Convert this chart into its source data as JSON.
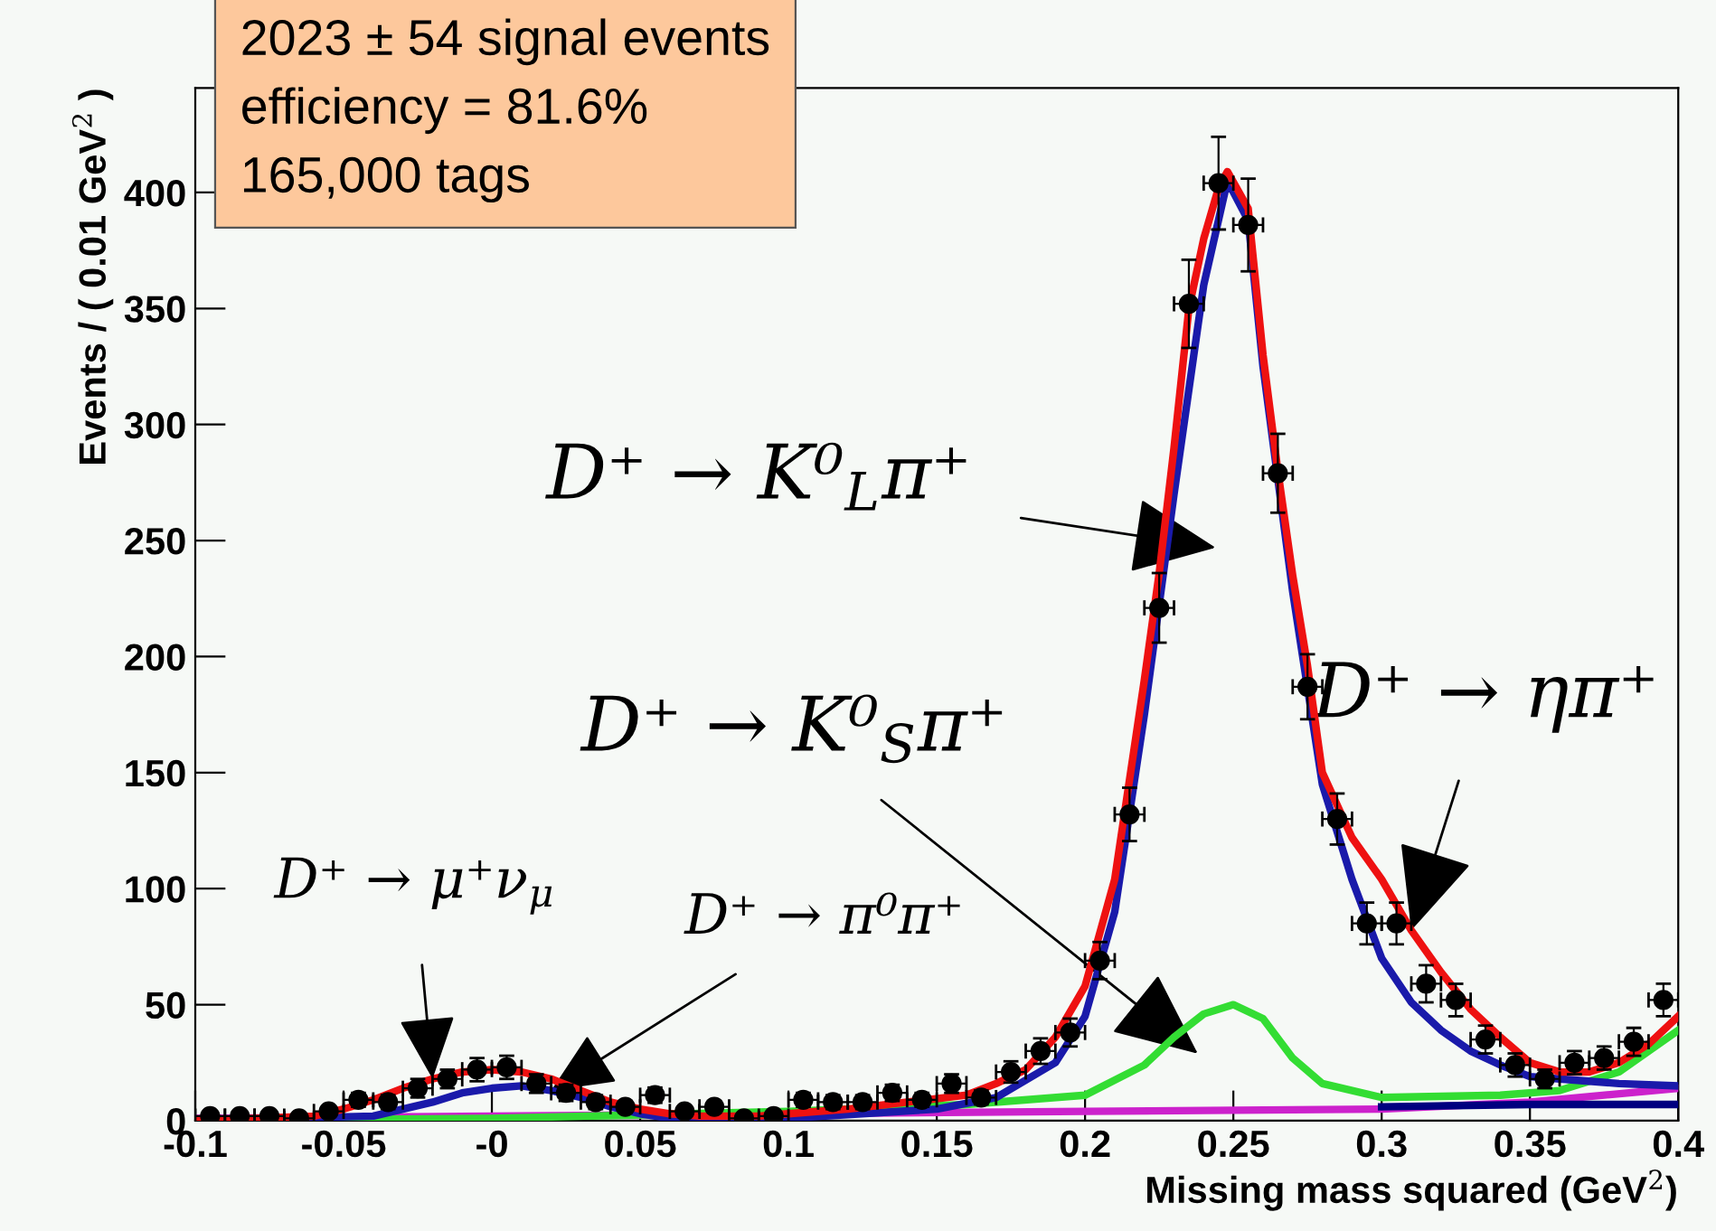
{
  "chart_data": {
    "type": "scatter",
    "xlabel": "Missing mass squared (GeV$^{2}$)",
    "ylabel": "Events / ( 0.01 GeV$^{2}$ )",
    "xlim": [
      -0.1,
      0.4
    ],
    "ylim": [
      0,
      445
    ],
    "xticks": [
      -0.1,
      -0.05,
      {
        "value": 0,
        "label": "-0"
      },
      0.05,
      0.1,
      0.15,
      0.2,
      0.25,
      0.3,
      0.35,
      0.4
    ],
    "yticks": [
      0,
      50,
      100,
      150,
      200,
      250,
      300,
      350,
      400
    ],
    "grid": false,
    "legend": false,
    "annotations": [
      "2023 ± 54 signal events",
      "efficiency = 81.6%",
      "165,000 tags",
      "D⁺ → K⁰$_{L}$π⁺",
      "D⁺ → K⁰$_{S}$π⁺",
      {
        "text": "D⁺ → ηπ⁺",
        "x": 0.31,
        "y": 82
      },
      {
        "text": "D⁺ → μ⁺ν$_{μ}$",
        "x": -0.02,
        "y": 18
      },
      {
        "text": "D⁺ → π⁰π⁺",
        "x": 0.02,
        "y": 13
      }
    ],
    "series": [
      {
        "color": "#000000",
        "marker": "circle",
        "x": [
          -0.095,
          -0.085,
          -0.075,
          -0.065,
          -0.055,
          -0.045,
          -0.035,
          -0.025,
          -0.015,
          -0.005,
          0.005,
          0.015,
          0.025,
          0.035,
          0.045,
          0.055,
          0.065,
          0.075,
          0.085,
          0.095,
          0.105,
          0.115,
          0.125,
          0.135,
          0.145,
          0.155,
          0.165,
          0.175,
          0.185,
          0.195,
          0.205,
          0.215,
          0.225,
          0.235,
          0.245,
          0.255,
          0.265,
          0.275,
          0.285,
          0.295,
          0.305,
          0.315,
          0.325,
          0.335,
          0.345,
          0.355,
          0.365,
          0.375,
          0.385,
          0.395
        ],
        "values": [
          2,
          2,
          2,
          1,
          4,
          9,
          8,
          14,
          18,
          22,
          23,
          16,
          12,
          8,
          6,
          11,
          4,
          6,
          1,
          2,
          9,
          8,
          8,
          12,
          9,
          16,
          10,
          21,
          30,
          38,
          69,
          132,
          221,
          352,
          404,
          386,
          279,
          187,
          130,
          85,
          85,
          59,
          52,
          35,
          24,
          18,
          25,
          27,
          34,
          52
        ],
        "errors": [
          1.4,
          1.4,
          1.4,
          1,
          2,
          3,
          3,
          4,
          4,
          5,
          5,
          4,
          3.5,
          3,
          2.5,
          3.3,
          2,
          2.5,
          1,
          1.4,
          3,
          3,
          3,
          3.5,
          3,
          4,
          3,
          4.6,
          5.5,
          6,
          8,
          11.5,
          15,
          19,
          20,
          20,
          17,
          14,
          11,
          9,
          9,
          8,
          7,
          6,
          5,
          4,
          5,
          5,
          6,
          7
        ],
        "xerrors": [
          0.005,
          0.005,
          0.005,
          0.005,
          0.005,
          0.005,
          0.005,
          0.005,
          0.005,
          0.005,
          0.005,
          0.005,
          0.005,
          0.005,
          0.005,
          0.005,
          0.005,
          0.005,
          0.005,
          0.005,
          0.005,
          0.005,
          0.005,
          0.005,
          0.005,
          0.005,
          0.005,
          0.005,
          0.005,
          0.005,
          0.005,
          0.005,
          0.005,
          0.005,
          0.005,
          0.005,
          0.005,
          0.005,
          0.005,
          0.005,
          0.005,
          0.005,
          0.005,
          0.005,
          0.005,
          0.005,
          0.005,
          0.005,
          0.005,
          0.005
        ]
      },
      {
        "type": "line",
        "color": "#cc22cc",
        "x": [
          -0.1,
          0.0,
          0.1,
          0.2,
          0.3,
          0.35,
          0.4
        ],
        "values": [
          1,
          2,
          3,
          4,
          5,
          8,
          14
        ]
      },
      {
        "type": "line",
        "color": "#000080",
        "x": [
          0.3,
          0.35,
          0.4
        ],
        "values": [
          6,
          7,
          7
        ]
      },
      {
        "type": "line",
        "color": "#33dd33",
        "x": [
          -0.1,
          0.0,
          0.1,
          0.16,
          0.2,
          0.22,
          0.23,
          0.24,
          0.25,
          0.26,
          0.27,
          0.28,
          0.3,
          0.34,
          0.36,
          0.38,
          0.4
        ],
        "values": [
          0,
          1,
          4,
          7,
          11,
          24,
          36,
          46,
          50,
          44,
          27,
          16,
          10,
          11,
          13,
          21,
          39
        ]
      },
      {
        "type": "line",
        "color": "#1a1aaa",
        "x": [
          -0.1,
          -0.04,
          -0.03,
          -0.02,
          -0.01,
          0.0,
          0.01,
          0.02,
          0.03,
          0.04,
          0.05,
          0.06,
          0.1,
          0.15,
          0.17,
          0.19,
          0.2,
          0.21,
          0.22,
          0.23,
          0.24,
          0.248,
          0.255,
          0.26,
          0.27,
          0.28,
          0.29,
          0.3,
          0.31,
          0.32,
          0.33,
          0.34,
          0.35,
          0.36,
          0.38,
          0.4
        ],
        "values": [
          0,
          2,
          5,
          8,
          12,
          14,
          15,
          13,
          10,
          6,
          3,
          1,
          1,
          5,
          10,
          25,
          45,
          90,
          175,
          270,
          360,
          405,
          388,
          325,
          228,
          145,
          104,
          70,
          51,
          39,
          30,
          24,
          19,
          18,
          16,
          15
        ]
      },
      {
        "type": "line",
        "color": "#ee1111",
        "x": [
          -0.1,
          -0.06,
          -0.05,
          -0.04,
          -0.03,
          -0.02,
          -0.01,
          0.0,
          0.01,
          0.02,
          0.03,
          0.04,
          0.05,
          0.06,
          0.07,
          0.09,
          0.1,
          0.12,
          0.14,
          0.16,
          0.17,
          0.18,
          0.19,
          0.2,
          0.21,
          0.22,
          0.225,
          0.23,
          0.235,
          0.24,
          0.245,
          0.248,
          0.255,
          0.26,
          0.265,
          0.27,
          0.275,
          0.28,
          0.29,
          0.3,
          0.31,
          0.32,
          0.33,
          0.34,
          0.35,
          0.36,
          0.37,
          0.38,
          0.39,
          0.4
        ],
        "values": [
          0,
          2,
          5,
          9,
          14,
          18,
          21,
          22,
          21,
          18,
          13,
          8,
          5,
          3,
          2,
          2,
          3,
          5,
          8,
          11,
          16,
          22,
          36,
          58,
          104,
          190,
          236,
          290,
          350,
          380,
          402,
          409,
          393,
          330,
          280,
          235,
          196,
          150,
          122,
          104,
          82,
          64,
          48,
          36,
          25,
          21,
          21,
          25,
          33,
          45
        ]
      }
    ]
  }
}
